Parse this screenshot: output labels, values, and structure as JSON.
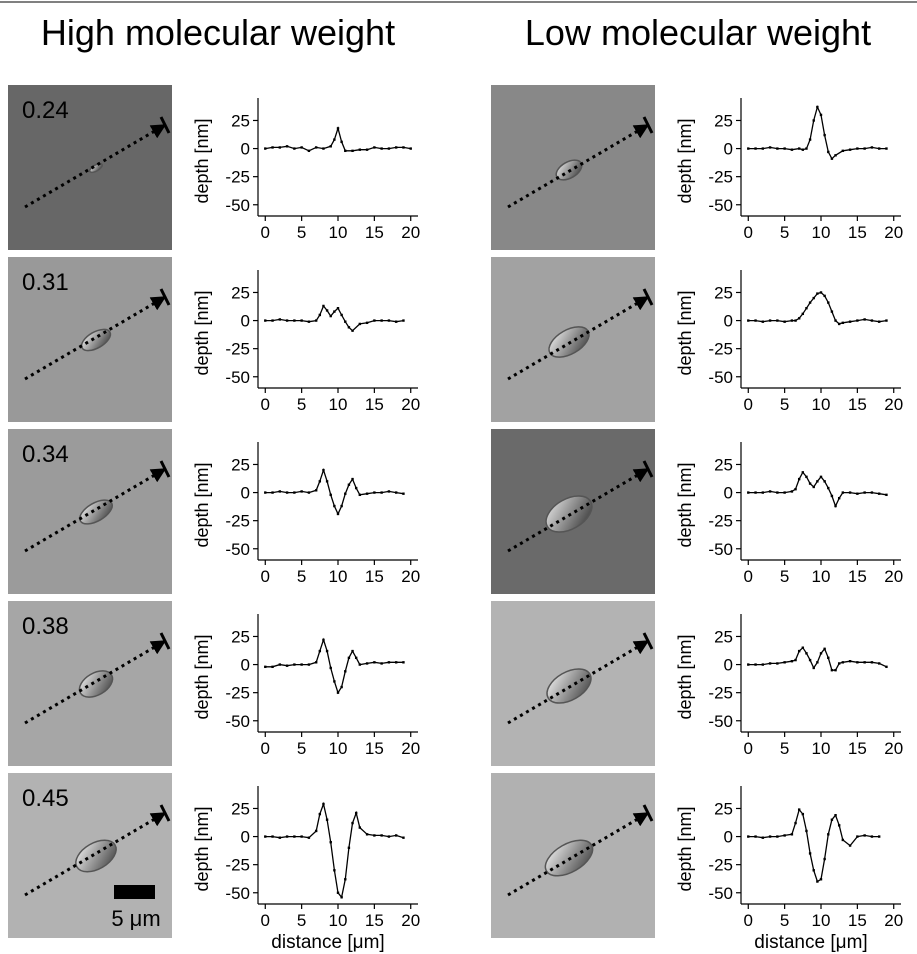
{
  "figure": {
    "columns": [
      {
        "title": "High molecular weight"
      },
      {
        "title": "Low molecular weight"
      }
    ],
    "row_labels": [
      "0.24",
      "0.31",
      "0.34",
      "0.38",
      "0.45"
    ],
    "scale_bar_label": "5 μm",
    "axis": {
      "ylabel": "depth [nm]",
      "xlabel": "distance [μm]",
      "yticks": [
        "25",
        "0",
        "-25",
        "-50"
      ],
      "xticks": [
        "0",
        "5",
        "10",
        "15",
        "20"
      ]
    }
  },
  "chart_data": [
    {
      "type": "line",
      "panel": "High molecular weight 0.24",
      "xlabel": "",
      "ylabel": "depth [nm]",
      "xlim": [
        -1,
        21
      ],
      "ylim": [
        -60,
        45
      ],
      "x": [
        0,
        1,
        2,
        3,
        4,
        5,
        6,
        7,
        8,
        9,
        9.5,
        10,
        10.5,
        11,
        12,
        13,
        14,
        15,
        16,
        17,
        18,
        19,
        20
      ],
      "y": [
        0,
        1,
        1,
        2,
        0,
        1,
        -2,
        1,
        0,
        2,
        8,
        18,
        6,
        -2,
        -2,
        -1,
        -1,
        1,
        0,
        0,
        1,
        1,
        0
      ]
    },
    {
      "type": "line",
      "panel": "High molecular weight 0.31",
      "xlabel": "",
      "ylabel": "depth [nm]",
      "xlim": [
        -1,
        21
      ],
      "ylim": [
        -60,
        45
      ],
      "x": [
        0,
        1,
        2,
        3,
        4,
        5,
        6,
        7,
        7.5,
        8,
        8.5,
        9,
        9.5,
        10,
        10.5,
        11,
        11.5,
        12,
        13,
        14,
        15,
        16,
        17,
        18,
        19
      ],
      "y": [
        0,
        0,
        1,
        0,
        0,
        0,
        -1,
        0,
        5,
        13,
        9,
        4,
        8,
        11,
        5,
        -1,
        -6,
        -9,
        -3,
        -2,
        0,
        0,
        0,
        -1,
        0
      ]
    },
    {
      "type": "line",
      "panel": "High molecular weight 0.34",
      "xlabel": "",
      "ylabel": "depth [nm]",
      "xlim": [
        -1,
        21
      ],
      "ylim": [
        -60,
        45
      ],
      "x": [
        0,
        1,
        2,
        3,
        4,
        5,
        6,
        7,
        7.5,
        8,
        8.5,
        9,
        9.5,
        10,
        10.5,
        11,
        11.5,
        12,
        12.5,
        13,
        14,
        15,
        16,
        17,
        18,
        19
      ],
      "y": [
        0,
        0,
        1,
        0,
        0,
        1,
        0,
        2,
        10,
        20,
        10,
        -2,
        -12,
        -19,
        -12,
        -1,
        7,
        12,
        4,
        -2,
        -1,
        0,
        0,
        1,
        0,
        -1
      ]
    },
    {
      "type": "line",
      "panel": "High molecular weight 0.38",
      "xlabel": "",
      "ylabel": "depth [nm]",
      "xlim": [
        -1,
        21
      ],
      "ylim": [
        -60,
        45
      ],
      "x": [
        0,
        1,
        2,
        3,
        4,
        5,
        6,
        7,
        7.5,
        8,
        8.5,
        9,
        9.5,
        10,
        10.5,
        11,
        11.5,
        12,
        12.5,
        13,
        14,
        15,
        16,
        17,
        18,
        19
      ],
      "y": [
        -2,
        -2,
        0,
        -1,
        0,
        0,
        0,
        2,
        12,
        22,
        12,
        -3,
        -15,
        -25,
        -20,
        -6,
        6,
        12,
        6,
        0,
        1,
        2,
        1,
        2,
        2,
        2
      ]
    },
    {
      "type": "line",
      "panel": "High molecular weight 0.45",
      "xlabel": "distance [μm]",
      "ylabel": "depth [nm]",
      "xlim": [
        -1,
        21
      ],
      "ylim": [
        -60,
        45
      ],
      "x": [
        0,
        1,
        2,
        3,
        4,
        5,
        6,
        7,
        7.5,
        8,
        8.5,
        9,
        9.5,
        10,
        10.5,
        11,
        11.5,
        12,
        12.5,
        13,
        14,
        15,
        16,
        17,
        18,
        19
      ],
      "y": [
        0,
        0,
        -1,
        0,
        0,
        0,
        -1,
        5,
        20,
        29,
        15,
        -5,
        -30,
        -50,
        -54,
        -38,
        -10,
        12,
        21,
        8,
        2,
        1,
        1,
        0,
        1,
        -1
      ]
    },
    {
      "type": "line",
      "panel": "Low molecular weight 0.24",
      "xlabel": "",
      "ylabel": "depth [nm]",
      "xlim": [
        -1,
        21
      ],
      "ylim": [
        -60,
        45
      ],
      "x": [
        0,
        1,
        2,
        3,
        4,
        5,
        6,
        7,
        7.5,
        8,
        8.5,
        9,
        9.5,
        10,
        10.5,
        11,
        11.5,
        12,
        13,
        14,
        15,
        16,
        17,
        18,
        19
      ],
      "y": [
        0,
        0,
        0,
        1,
        0,
        0,
        -1,
        0,
        -1,
        0,
        8,
        25,
        37,
        30,
        12,
        -3,
        -9,
        -6,
        -2,
        -1,
        0,
        0,
        1,
        0,
        0
      ]
    },
    {
      "type": "line",
      "panel": "Low molecular weight 0.31",
      "xlabel": "",
      "ylabel": "depth [nm]",
      "xlim": [
        -1,
        21
      ],
      "ylim": [
        -60,
        45
      ],
      "x": [
        0,
        1,
        2,
        3,
        4,
        5,
        6,
        6.5,
        7,
        7.5,
        8,
        8.5,
        9,
        9.5,
        10,
        10.5,
        11,
        11.5,
        12,
        12.5,
        13,
        14,
        15,
        16,
        17,
        18,
        19
      ],
      "y": [
        0,
        0,
        -1,
        0,
        0,
        -1,
        0,
        0,
        2,
        6,
        11,
        16,
        20,
        24,
        25,
        22,
        16,
        8,
        0,
        -3,
        -2,
        -1,
        0,
        1,
        0,
        -1,
        0
      ]
    },
    {
      "type": "line",
      "panel": "Low molecular weight 0.34",
      "xlabel": "",
      "ylabel": "depth [nm]",
      "xlim": [
        -1,
        21
      ],
      "ylim": [
        -60,
        45
      ],
      "x": [
        0,
        1,
        2,
        3,
        4,
        5,
        6,
        6.5,
        7,
        7.5,
        8,
        8.5,
        9,
        9.5,
        10,
        10.5,
        11,
        11.5,
        12,
        12.5,
        13,
        14,
        15,
        16,
        17,
        18,
        19
      ],
      "y": [
        0,
        0,
        0,
        1,
        0,
        0,
        1,
        3,
        12,
        18,
        14,
        8,
        5,
        10,
        14,
        10,
        4,
        -3,
        -12,
        -5,
        0,
        0,
        -1,
        0,
        0,
        -1,
        -2
      ]
    },
    {
      "type": "line",
      "panel": "Low molecular weight 0.38",
      "xlabel": "",
      "ylabel": "depth [nm]",
      "xlim": [
        -1,
        21
      ],
      "ylim": [
        -60,
        45
      ],
      "x": [
        0,
        1,
        2,
        3,
        4,
        5,
        6,
        6.5,
        7,
        7.5,
        8,
        8.5,
        9,
        9.5,
        10,
        10.5,
        11,
        11.5,
        12,
        12.5,
        13,
        14,
        15,
        16,
        17,
        18,
        19
      ],
      "y": [
        0,
        0,
        0,
        1,
        1,
        2,
        3,
        4,
        12,
        15,
        10,
        4,
        -3,
        2,
        10,
        14,
        6,
        -5,
        -5,
        1,
        2,
        3,
        2,
        2,
        2,
        1,
        -2
      ]
    },
    {
      "type": "line",
      "panel": "Low molecular weight 0.45",
      "xlabel": "distance [μm]",
      "ylabel": "depth [nm]",
      "xlim": [
        -1,
        21
      ],
      "ylim": [
        -60,
        45
      ],
      "x": [
        0,
        1,
        2,
        3,
        4,
        5,
        6,
        6.5,
        7,
        7.5,
        8,
        8.5,
        9,
        9.5,
        10,
        10.5,
        11,
        11.5,
        12,
        12.5,
        13,
        14,
        15,
        16,
        17,
        18
      ],
      "y": [
        0,
        0,
        -1,
        0,
        0,
        1,
        2,
        12,
        24,
        20,
        5,
        -15,
        -30,
        -40,
        -38,
        -20,
        2,
        15,
        19,
        10,
        -3,
        -8,
        0,
        1,
        0,
        0
      ]
    }
  ]
}
